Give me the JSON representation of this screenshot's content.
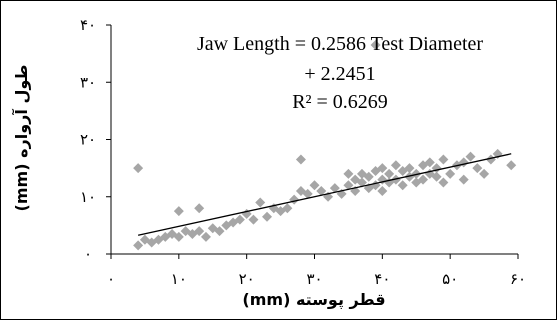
{
  "chart_data": {
    "type": "scatter",
    "xlabel": "قطر پوسته (mm)",
    "ylabel": "طول آرواره (mm)",
    "xlim": [
      0,
      60
    ],
    "ylim": [
      0,
      40
    ],
    "x_ticks": [
      0,
      10,
      20,
      30,
      40,
      50,
      60
    ],
    "y_ticks": [
      0,
      10,
      20,
      30,
      40
    ],
    "x_tick_labels": [
      "۰",
      "۱۰",
      "۲۰",
      "۳۰",
      "۴۰",
      "۵۰",
      "۶۰"
    ],
    "y_tick_labels": [
      "۰",
      "۱۰",
      "۲۰",
      "۳۰",
      "۴۰"
    ],
    "grid": false,
    "marker_color": "#a6a6a6",
    "trendline_color": "#000000",
    "trendline": {
      "slope": 0.2586,
      "intercept": 2.2451,
      "x_range": [
        4,
        59
      ]
    },
    "equation_lines": [
      "Jaw Length = 0.2586 Test Diameter",
      "+ 2.2451",
      "R² = 0.6269"
    ],
    "points": [
      {
        "x": 4,
        "y": 15
      },
      {
        "x": 4,
        "y": 1.5
      },
      {
        "x": 5,
        "y": 2.5
      },
      {
        "x": 6,
        "y": 2
      },
      {
        "x": 7,
        "y": 2.5
      },
      {
        "x": 8,
        "y": 3
      },
      {
        "x": 9,
        "y": 3.5
      },
      {
        "x": 10,
        "y": 7.5
      },
      {
        "x": 10,
        "y": 3
      },
      {
        "x": 11,
        "y": 4
      },
      {
        "x": 12,
        "y": 3.5
      },
      {
        "x": 13,
        "y": 4
      },
      {
        "x": 13,
        "y": 8
      },
      {
        "x": 14,
        "y": 3
      },
      {
        "x": 15,
        "y": 4.5
      },
      {
        "x": 16,
        "y": 4
      },
      {
        "x": 17,
        "y": 5
      },
      {
        "x": 18,
        "y": 5.5
      },
      {
        "x": 19,
        "y": 6
      },
      {
        "x": 20,
        "y": 7
      },
      {
        "x": 21,
        "y": 6
      },
      {
        "x": 22,
        "y": 9
      },
      {
        "x": 23,
        "y": 6.5
      },
      {
        "x": 24,
        "y": 8
      },
      {
        "x": 25,
        "y": 7.5
      },
      {
        "x": 26,
        "y": 8
      },
      {
        "x": 27,
        "y": 9.5
      },
      {
        "x": 28,
        "y": 11
      },
      {
        "x": 28,
        "y": 16.5
      },
      {
        "x": 29,
        "y": 10.5
      },
      {
        "x": 30,
        "y": 12
      },
      {
        "x": 31,
        "y": 11
      },
      {
        "x": 32,
        "y": 10
      },
      {
        "x": 33,
        "y": 11.5
      },
      {
        "x": 34,
        "y": 10.5
      },
      {
        "x": 35,
        "y": 12
      },
      {
        "x": 35,
        "y": 14
      },
      {
        "x": 36,
        "y": 11
      },
      {
        "x": 36,
        "y": 13
      },
      {
        "x": 37,
        "y": 12.5
      },
      {
        "x": 37,
        "y": 14
      },
      {
        "x": 38,
        "y": 11.5
      },
      {
        "x": 38,
        "y": 13.5
      },
      {
        "x": 39,
        "y": 12
      },
      {
        "x": 39,
        "y": 14.5
      },
      {
        "x": 39,
        "y": 36.5
      },
      {
        "x": 40,
        "y": 11
      },
      {
        "x": 40,
        "y": 13
      },
      {
        "x": 40,
        "y": 15
      },
      {
        "x": 41,
        "y": 12.5
      },
      {
        "x": 41,
        "y": 14
      },
      {
        "x": 42,
        "y": 13
      },
      {
        "x": 42,
        "y": 15.5
      },
      {
        "x": 43,
        "y": 12
      },
      {
        "x": 43,
        "y": 14.5
      },
      {
        "x": 44,
        "y": 13.5
      },
      {
        "x": 44,
        "y": 15
      },
      {
        "x": 45,
        "y": 12.5
      },
      {
        "x": 45,
        "y": 14
      },
      {
        "x": 46,
        "y": 13
      },
      {
        "x": 46,
        "y": 15.5
      },
      {
        "x": 47,
        "y": 14
      },
      {
        "x": 47,
        "y": 16
      },
      {
        "x": 48,
        "y": 13.5
      },
      {
        "x": 48,
        "y": 15
      },
      {
        "x": 49,
        "y": 12.5
      },
      {
        "x": 49,
        "y": 16.5
      },
      {
        "x": 50,
        "y": 14
      },
      {
        "x": 51,
        "y": 15.5
      },
      {
        "x": 52,
        "y": 13
      },
      {
        "x": 52,
        "y": 16
      },
      {
        "x": 53,
        "y": 17
      },
      {
        "x": 54,
        "y": 15
      },
      {
        "x": 55,
        "y": 14
      },
      {
        "x": 56,
        "y": 16.5
      },
      {
        "x": 57,
        "y": 17.5
      },
      {
        "x": 59,
        "y": 15.5
      }
    ]
  }
}
